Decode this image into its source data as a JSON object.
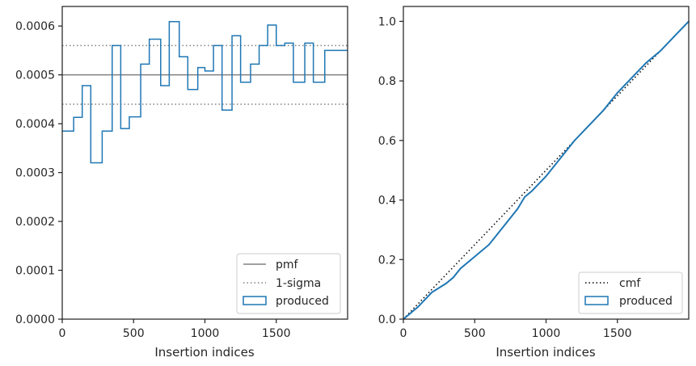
{
  "chart_data": [
    {
      "type": "histogram-step",
      "xlabel": "Insertion indices",
      "ylabel": "",
      "xlim": [
        0,
        2000
      ],
      "ylim": [
        0,
        0.00064
      ],
      "xticks": [
        0,
        500,
        1000,
        1500
      ],
      "xtick_labels": [
        "0",
        "500",
        "1000",
        "1500"
      ],
      "yticks": [
        0,
        0.0001,
        0.0002,
        0.0003,
        0.0004,
        0.0005,
        0.0006
      ],
      "ytick_labels": [
        "0.0000",
        "0.0001",
        "0.0002",
        "0.0003",
        "0.0004",
        "0.0005",
        "0.0006"
      ],
      "legend": {
        "placement": "lower-right",
        "entries": [
          "pmf",
          "1-sigma",
          "produced"
        ]
      },
      "colors": {
        "pmf": "#808080",
        "sigma": "#808080",
        "produced": "#1f77b4"
      },
      "pmf": 0.0005,
      "sigma_band": [
        0.00044,
        0.00056
      ],
      "bin_edges": [
        0,
        80,
        140,
        200,
        280,
        350,
        410,
        470,
        550,
        610,
        690,
        750,
        820,
        880,
        950,
        1000,
        1060,
        1120,
        1190,
        1250,
        1320,
        1380,
        1440,
        1500,
        1560,
        1620,
        1700,
        1760,
        1840,
        1900,
        1960,
        2000
      ],
      "values": [
        0.000385,
        0.000413,
        0.000478,
        0.00032,
        0.000385,
        0.00056,
        0.00039,
        0.000414,
        0.000522,
        0.000573,
        0.000478,
        0.000609,
        0.000537,
        0.00047,
        0.000515,
        0.000508,
        0.00056,
        0.000428,
        0.00058,
        0.000485,
        0.000522,
        0.00056,
        0.000602,
        0.00056,
        0.000565,
        0.000485,
        0.000565,
        0.000485,
        0.00055,
        0.00055,
        0.00055
      ]
    },
    {
      "type": "line",
      "xlabel": "Insertion indices",
      "ylabel": "",
      "xlim": [
        0,
        2000
      ],
      "ylim": [
        0,
        1.05
      ],
      "xticks": [
        0,
        500,
        1000,
        1500
      ],
      "xtick_labels": [
        "0",
        "500",
        "1000",
        "1500"
      ],
      "yticks": [
        0,
        0.2,
        0.4,
        0.6,
        0.8,
        1.0
      ],
      "ytick_labels": [
        "0.0",
        "0.2",
        "0.4",
        "0.6",
        "0.8",
        "1.0"
      ],
      "legend": {
        "placement": "lower-right",
        "entries": [
          "cmf",
          "produced"
        ]
      },
      "colors": {
        "cmf": "#000000",
        "produced": "#1f77b4"
      },
      "cmf": {
        "x": [
          0,
          2000
        ],
        "y": [
          0,
          1
        ]
      },
      "produced": {
        "x": [
          0,
          100,
          200,
          300,
          350,
          400,
          500,
          600,
          700,
          800,
          850,
          900,
          1000,
          1100,
          1200,
          1300,
          1400,
          1500,
          1600,
          1700,
          1800,
          1900,
          2000
        ],
        "y": [
          0,
          0.04,
          0.09,
          0.12,
          0.14,
          0.17,
          0.21,
          0.25,
          0.31,
          0.37,
          0.41,
          0.43,
          0.48,
          0.54,
          0.6,
          0.65,
          0.7,
          0.76,
          0.81,
          0.86,
          0.9,
          0.95,
          1.0
        ]
      }
    }
  ]
}
